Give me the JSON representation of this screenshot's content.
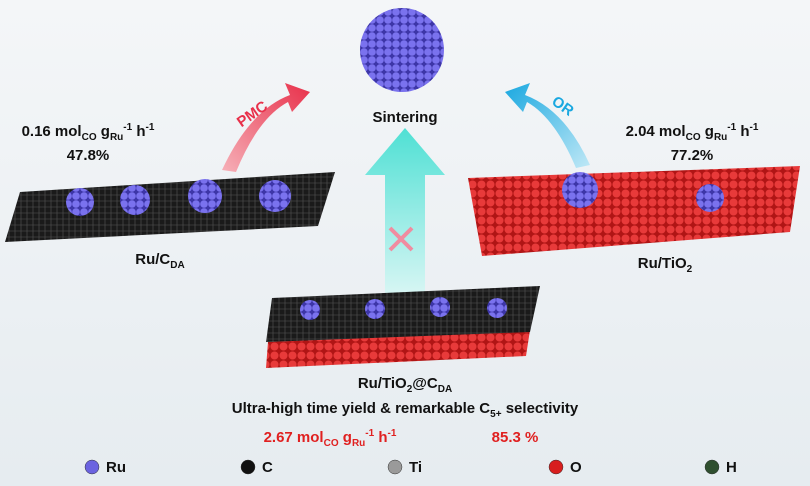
{
  "center": {
    "label": "Sintering"
  },
  "left": {
    "arrow_label": "PMC",
    "rate": [
      "0.16 mol",
      "CO",
      " g",
      "Ru",
      "-1",
      " h",
      "-1"
    ],
    "selectivity": "47.8%",
    "name": [
      "Ru/C",
      "DA"
    ]
  },
  "right": {
    "arrow_label": "OR",
    "rate": [
      "2.04 mol",
      "CO",
      " g",
      "Ru",
      "-1",
      " h",
      "-1"
    ],
    "selectivity": "77.2%",
    "name": [
      "Ru/TiO",
      "2"
    ]
  },
  "bottom": {
    "name": [
      "Ru/TiO",
      "2",
      "@C",
      "DA"
    ],
    "caption": [
      "Ultra-high time yield & remarkable C",
      "5+",
      " selectivity"
    ],
    "rate": [
      "2.67 mol",
      "CO",
      " g",
      "Ru",
      "-1",
      " h",
      "-1"
    ],
    "selectivity": "85.3 %"
  },
  "legend": [
    {
      "label": "Ru",
      "color": "#6b63e0"
    },
    {
      "label": "C",
      "color": "#111111"
    },
    {
      "label": "Ti",
      "color": "#9a9a9a"
    },
    {
      "label": "O",
      "color": "#d81e1e"
    },
    {
      "label": "H",
      "color": "#2f4f2f"
    }
  ]
}
